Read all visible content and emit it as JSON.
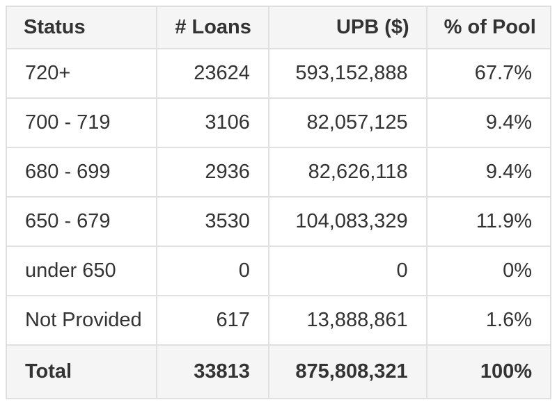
{
  "chart_data": {
    "type": "table",
    "columns": [
      {
        "label": "Status",
        "align": "left"
      },
      {
        "label": "# Loans",
        "align": "right"
      },
      {
        "label": "UPB ($)",
        "align": "right"
      },
      {
        "label": "% of Pool",
        "align": "right"
      }
    ],
    "rows": [
      [
        "720+",
        "23624",
        "593,152,888",
        "67.7%"
      ],
      [
        "700 - 719",
        "3106",
        "82,057,125",
        "9.4%"
      ],
      [
        "680 - 699",
        "2936",
        "82,626,118",
        "9.4%"
      ],
      [
        "650 - 679",
        "3530",
        "104,083,329",
        "11.9%"
      ],
      [
        "under 650",
        "0",
        "0",
        "0%"
      ],
      [
        "Not Provided",
        "617",
        "13,888,861",
        "1.6%"
      ]
    ],
    "total_row": [
      "Total",
      "33813",
      "875,808,321",
      "100%"
    ]
  },
  "colors": {
    "header_bg": "#f5f5f5",
    "total_bg": "#f5f5f5",
    "row_bg": "#ffffff",
    "border": "#e0e0e0",
    "text": "#333333",
    "page_bg": "#ffffff"
  }
}
